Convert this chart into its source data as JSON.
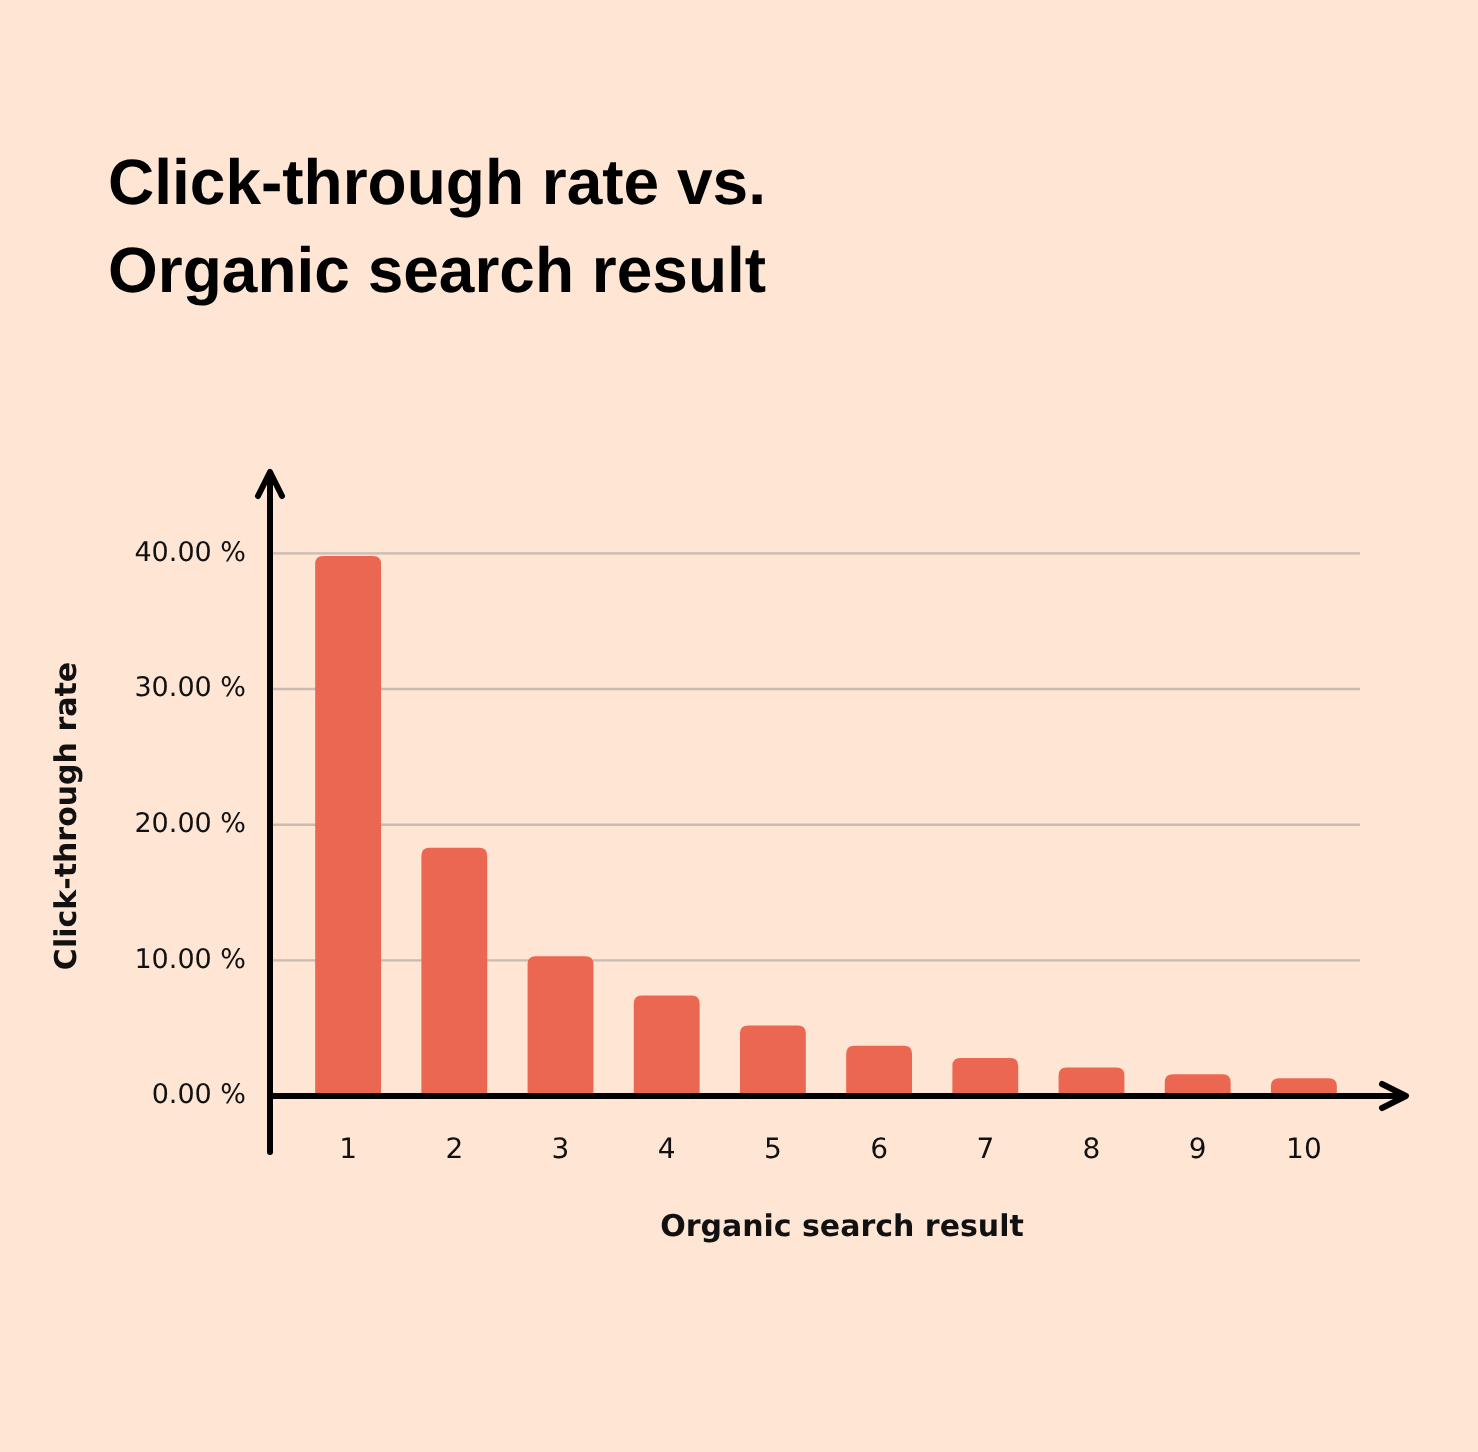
{
  "chart_data": {
    "type": "bar",
    "title": "Click-through rate vs. Organic search result",
    "xlabel": "Organic search result",
    "ylabel": "Click-through rate",
    "categories": [
      "1",
      "2",
      "3",
      "4",
      "5",
      "6",
      "7",
      "8",
      "9",
      "10"
    ],
    "values": [
      39.8,
      18.3,
      10.3,
      7.4,
      5.2,
      3.7,
      2.8,
      2.1,
      1.6,
      1.3
    ],
    "color": "#ec6751",
    "ylim": [
      0,
      46
    ],
    "yticks": [
      {
        "value": 0,
        "label": "0.00 %"
      },
      {
        "value": 10,
        "label": "10.00 %"
      },
      {
        "value": 20,
        "label": "20.00 %"
      },
      {
        "value": 30,
        "label": "30.00 %"
      },
      {
        "value": 40,
        "label": "40.00 %"
      }
    ],
    "grid": "y"
  }
}
